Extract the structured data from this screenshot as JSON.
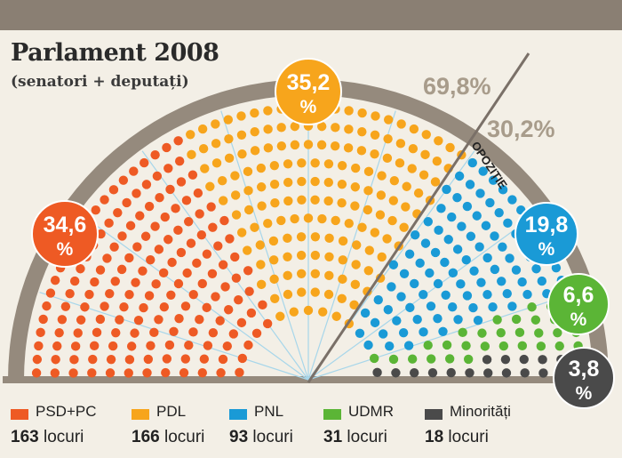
{
  "header": {
    "title": "Parlament 2008",
    "subtitle": "(senatori + deputați)"
  },
  "annotations": {
    "majority_pct": "69,8%",
    "opposition_pct": "30,2%",
    "opposition_label": "OPOZIȚIE"
  },
  "chart_data": {
    "type": "parliament-hemicycle",
    "title": "Parlament 2008",
    "subtitle": "(senatori + deputați)",
    "total_seats": 471,
    "series": [
      {
        "name": "PSD+PC",
        "seats": 163,
        "percent": 34.6,
        "percent_label": "34,6",
        "seats_label": "163",
        "color": "#ee5a24"
      },
      {
        "name": "PDL",
        "seats": 166,
        "percent": 35.2,
        "percent_label": "35,2",
        "seats_label": "166",
        "color": "#f7a51c"
      },
      {
        "name": "PNL",
        "seats": 93,
        "percent": 19.8,
        "percent_label": "19,8",
        "seats_label": "93",
        "color": "#1a9ad6"
      },
      {
        "name": "UDMR",
        "seats": 31,
        "percent": 6.6,
        "percent_label": "6,6",
        "seats_label": "31",
        "color": "#5bb536"
      },
      {
        "name": "Minorități",
        "seats": 18,
        "percent": 3.8,
        "percent_label": "3,8",
        "seats_label": "18",
        "color": "#4a4a4a"
      }
    ],
    "percent_suffix": "%",
    "seats_unit": "locuri",
    "split": {
      "majority": "69,8%",
      "opposition": "30,2%"
    }
  }
}
